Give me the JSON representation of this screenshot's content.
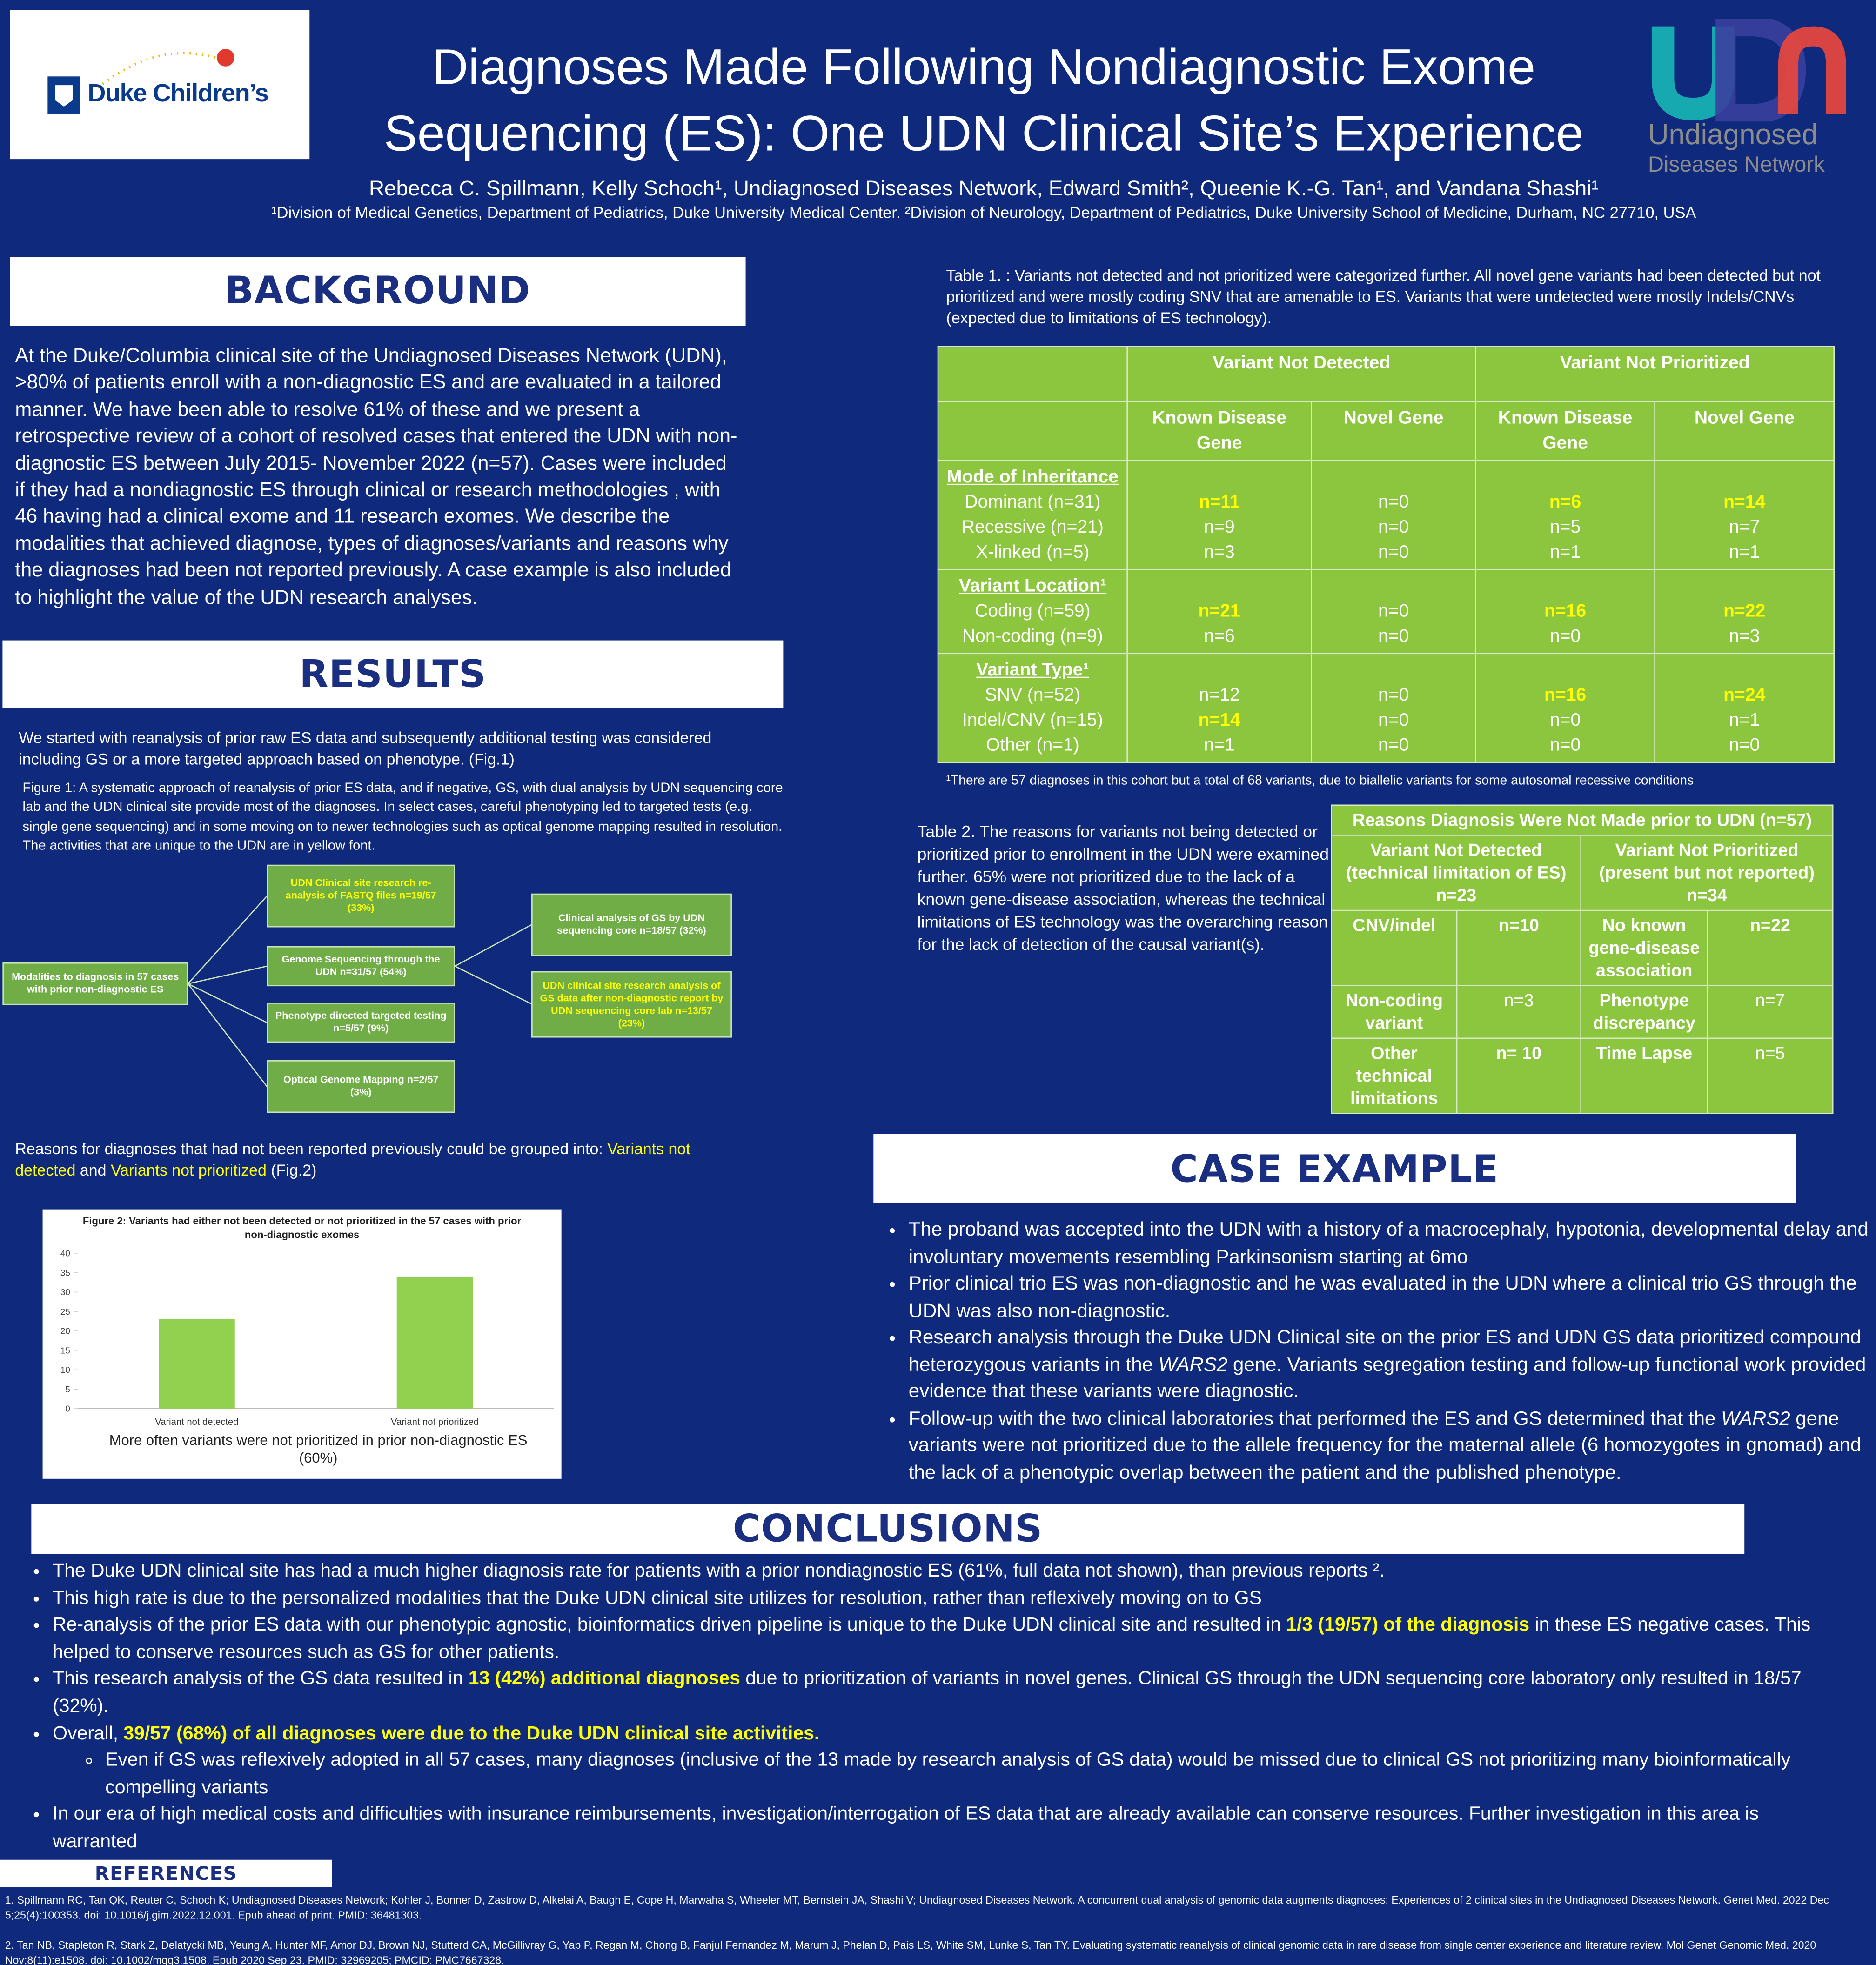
{
  "header": {
    "logo_left": "Duke Children’s",
    "title_lines": [
      "Diagnoses Made Following Nondiagnostic Exome",
      "Sequencing (ES): One UDN Clinical Site’s Experience"
    ],
    "authors": "Rebecca C. Spillmann, Kelly Schoch¹, Undiagnosed Diseases Network, Edward Smith², Queenie K.-G. Tan¹, and Vandana Shashi¹",
    "affiliations": "¹Division of Medical Genetics, Department of Pediatrics, Duke University Medical Center. ²Division of Neurology, Department of Pediatrics, Duke University School of Medicine, Durham, NC 27710, USA",
    "logo_right": [
      "Undiagnosed",
      "Diseases Network"
    ]
  },
  "background": {
    "heading": "BACKGROUND",
    "text": "At the Duke/Columbia clinical site of the Undiagnosed Diseases Network (UDN), >80% of patients enroll with a non-diagnostic ES and are evaluated in a tailored manner. We have been able to resolve 61% of these and we present a retrospective review of a cohort of resolved cases that entered the UDN with non-diagnostic ES between July 2015- November 2022 (n=57). Cases were included if they had a nondiagnostic ES through clinical or research methodologies , with 46 having had a clinical exome and 11 research exomes. We describe the modalities that achieved diagnose, types of diagnoses/variants and reasons why the diagnoses had been not reported previously.  A case example is also included to highlight the value of the UDN research analyses."
  },
  "results": {
    "heading": "RESULTS",
    "intro": "We started with reanalysis of prior raw ES data and subsequently additional testing was considered including GS or a more targeted approach based on phenotype. (Fig.1)",
    "figure1_caption": "Figure 1: A systematic approach of reanalysis of prior ES data, and if negative, GS, with dual analysis by UDN sequencing core lab and the UDN clinical site provide most of the diagnoses.  In select cases, careful phenotyping led to targeted tests (e.g. single gene sequencing) and in some moving on to newer technologies such as optical genome mapping resulted in resolution. The activities that are unique to the UDN are in yellow font.",
    "figure1_nodes": [
      "Modalities to diagnosis in 57 cases with prior non-diagnostic ES",
      "UDN Clinical site research re-analysis of FASTQ files n=19/57 (33%)",
      "Genome Sequencing through the UDN n=31/57 (54%)",
      "Phenotype directed targeted testing n=5/57 (9%)",
      "Optical Genome Mapping n=2/57 (3%)",
      "Clinical analysis of GS by UDN sequencing core n=18/57 (32%)",
      "UDN clinical site research analysis of GS data after non-diagnostic report by UDN sequencing core lab n=13/57 (23%)"
    ],
    "reasons": [
      "Reasons for diagnoses that had not been reported previously could be grouped into: ",
      "Variants not detected",
      " and ",
      "Variants not prioritized",
      " (Fig.2)"
    ]
  },
  "chart_data": {
    "type": "bar",
    "title": "Figure 2: Variants had either not been detected or not prioritized in the 57 cases with prior non-diagnostic exomes",
    "categories": [
      "Variant not detected",
      "Variant not prioritized"
    ],
    "values": [
      23,
      34
    ],
    "color": "#92d050",
    "ylim": [
      0,
      40
    ],
    "yticks": [
      0,
      5,
      10,
      15,
      20,
      25,
      30,
      35,
      40
    ],
    "grid": false,
    "caption": "More often variants were not prioritized in prior non-diagnostic ES (60%)"
  },
  "table1": {
    "caption": "Table 1. : Variants not detected and not prioritized were categorized further. All novel gene variants had been detected but not prioritized and were mostly coding SNV that are amenable to ES. Variants that were undetected were mostly Indels/CNVs (expected due to limitations of ES technology).",
    "groups": [
      "Variant Not Detected",
      "Variant Not Prioritized"
    ],
    "subcolumns": [
      "Known Disease Gene",
      "Novel Gene",
      "Known Disease Gene",
      "Novel Gene"
    ],
    "sections": [
      {
        "heading": "Mode of Inheritance",
        "rows": [
          {
            "label": "Dominant (n=31)",
            "cells": [
              "n=11",
              "n=0",
              "n=6",
              "n=14"
            ]
          },
          {
            "label": "Recessive (n=21)",
            "cells": [
              "n=9",
              "n=0",
              "n=5",
              "n=7"
            ]
          },
          {
            "label": "X-linked (n=5)",
            "cells": [
              "n=3",
              "n=0",
              "n=1",
              "n=1"
            ]
          }
        ]
      },
      {
        "heading": "Variant Location¹",
        "rows": [
          {
            "label": "Coding (n=59)",
            "cells": [
              "n=21",
              "n=0",
              "n=16",
              "n=22"
            ]
          },
          {
            "label": "Non-coding (n=9)",
            "cells": [
              "n=6",
              "n=0",
              "n=0",
              "n=3"
            ]
          }
        ]
      },
      {
        "heading": "Variant Type¹",
        "rows": [
          {
            "label": "SNV (n=52)",
            "cells": [
              "n=12",
              "n=0",
              "n=16",
              "n=24"
            ]
          },
          {
            "label": "Indel/CNV (n=15)",
            "cells": [
              "n=14",
              "n=0",
              "n=0",
              "n=1"
            ]
          },
          {
            "label": "Other (n=1)",
            "cells": [
              "n=1",
              "n=0",
              "n=0",
              "n=0"
            ]
          }
        ]
      }
    ],
    "footnote": "¹There are 57 diagnoses in this cohort but a total of 68 variants, due to biallelic variants for some autosomal recessive conditions"
  },
  "table2": {
    "caption": "Table 2. The reasons for variants not being detected or prioritized prior to enrollment in the UDN were examined further. 65% were not prioritized due to the lack of a known gene-disease association, whereas the technical limitations of ES technology was the overarching reason for the lack of detection of the causal variant(s).",
    "title": "Reasons Diagnosis Were Not Made prior to UDN (n=57)",
    "groups": [
      "Variant Not Detected (technical limitation of ES) n=23",
      "Variant Not Prioritized (present but not reported) n=34"
    ],
    "rows": [
      [
        "CNV/indel",
        "n=10",
        "No known gene-disease association",
        "n=22"
      ],
      [
        "Non-coding variant",
        "n=3",
        "Phenotype discrepancy",
        "n=7"
      ],
      [
        "Other technical limitations",
        "n= 10",
        "Time Lapse",
        "n=5"
      ]
    ]
  },
  "case_example": {
    "heading": "CASE EXAMPLE",
    "bullets": [
      [
        "The proband  was accepted into the UDN with a history of a macrocephaly, hypotonia, developmental delay and involuntary movements resembling Parkinsonism starting at 6mo"
      ],
      [
        "Prior clinical trio ES was non-diagnostic and he was evaluated in the UDN where a clinical trio GS through the UDN was also non-diagnostic."
      ],
      [
        "Research analysis through the Duke UDN Clinical site on the prior ES and UDN GS data prioritized compound heterozygous variants in the ",
        "WARS2",
        " gene. Variants segregation testing and follow-up functional work provided evidence that these variants were diagnostic."
      ],
      [
        "Follow-up with the two clinical laboratories that performed the ES and GS determined that the ",
        "WARS2",
        " gene variants were not prioritized due to the allele frequency for the maternal allele (6 homozygotes in gnomad) and the lack of a phenotypic overlap between the patient and the published phenotype."
      ]
    ]
  },
  "conclusions": {
    "heading": "CONCLUSIONS",
    "bullets": [
      [
        "The Duke UDN clinical site has had a much higher diagnosis rate for patients with a prior nondiagnostic ES (61%, full data not shown), than previous reports ²."
      ],
      [
        "This high rate is due to the personalized modalities that the Duke UDN clinical site utilizes for resolution, rather than reflexively moving on to GS"
      ],
      [
        "Re-analysis of the prior ES data with our phenotypic agnostic, bioinformatics driven pipeline is unique to the Duke UDN clinical site and resulted in ",
        "1/3 (19/57) of the diagnosis",
        " in these ES negative cases. This helped to conserve resources such as GS for other patients."
      ],
      [
        "This research analysis of the GS data resulted in ",
        "13 (42%) additional diagnoses",
        " due to prioritization of variants in novel genes. Clinical GS through the UDN sequencing core laboratory only resulted in 18/57 (32%)."
      ],
      [
        "Overall, ",
        "39/57 (68%) of all diagnoses were due to the Duke UDN clinical site activities."
      ],
      [
        "Even if GS was reflexively adopted in all 57 cases, many diagnoses (inclusive of the 13 made by research analysis of GS data) would be missed due to clinical GS not prioritizing many bioinformatically compelling variants"
      ],
      [
        "In our era of high medical costs and difficulties with insurance reimbursements, investigation/interrogation of ES data that are already available can conserve resources. Further investigation in this area is warranted"
      ]
    ]
  },
  "references": {
    "heading": "REFERENCES",
    "items": [
      "1. Spillmann RC, Tan QK, Reuter C, Schoch K; Undiagnosed Diseases Network; Kohler J, Bonner D, Zastrow D, Alkelai A, Baugh E, Cope H, Marwaha S, Wheeler MT, Bernstein JA, Shashi V; Undiagnosed Diseases Network. A concurrent dual analysis of genomic data augments diagnoses: Experiences of 2 clinical sites in the Undiagnosed Diseases Network. Genet Med. 2022 Dec 5;25(4):100353. doi: 10.1016/j.gim.2022.12.001. Epub ahead of print. PMID: 36481303.",
      "2. Tan NB, Stapleton R, Stark Z, Delatycki MB, Yeung A, Hunter MF, Amor DJ, Brown NJ, Stutterd CA, McGillivray G, Yap P, Regan M, Chong B, Fanjul Fernandez M, Marum J, Phelan D, Pais LS, White SM, Lunke S, Tan TY. Evaluating systematic reanalysis of clinical genomic data in rare disease from single center experience and literature review. Mol Genet Genomic Med. 2020 Nov;8(11):e1508. doi: 10.1002/mgg3.1508. Epub 2020 Sep 23. PMID: 32969205; PMCID: PMC7667328."
    ]
  }
}
